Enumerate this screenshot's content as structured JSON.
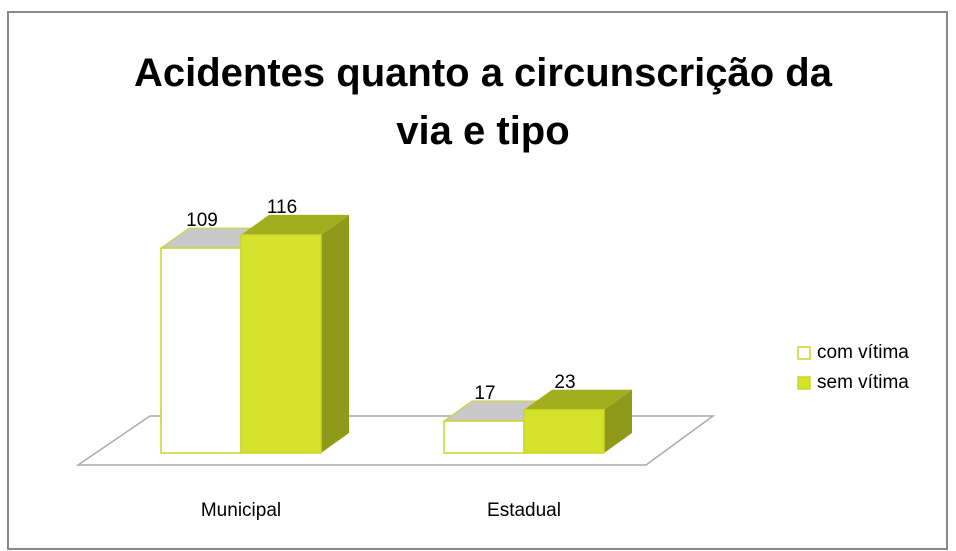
{
  "chart_data": {
    "type": "bar3d",
    "title": "Acidentes quanto a circunscrição da via e tipo",
    "categories": [
      "Municipal",
      "Estadual"
    ],
    "series": [
      {
        "name": "com vítima",
        "color": "#ffffff",
        "values": [
          109,
          17
        ]
      },
      {
        "name": "sem vítima",
        "color": "#d4e22b",
        "values": [
          116,
          23
        ]
      }
    ]
  }
}
